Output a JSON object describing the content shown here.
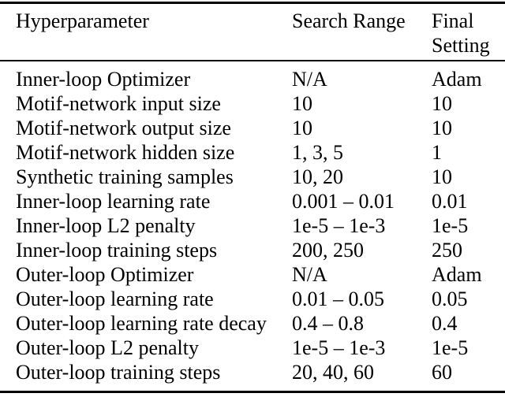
{
  "table": {
    "headers": [
      "Hyperparameter",
      "Search Range",
      "Final Setting"
    ],
    "rows": [
      [
        "Inner-loop Optimizer",
        "N/A",
        "Adam"
      ],
      [
        "Motif-network input size",
        "10",
        "10"
      ],
      [
        "Motif-network output size",
        "10",
        "10"
      ],
      [
        "Motif-network hidden size",
        "1, 3, 5",
        "1"
      ],
      [
        "Synthetic training samples",
        "10, 20",
        "10"
      ],
      [
        "Inner-loop learning rate",
        "0.001 – 0.01",
        "0.01"
      ],
      [
        "Inner-loop L2 penalty",
        "1e-5 – 1e-3",
        "1e-5"
      ],
      [
        "Inner-loop training steps",
        "200, 250",
        "250"
      ],
      [
        "Outer-loop Optimizer",
        "N/A",
        "Adam"
      ],
      [
        "Outer-loop learning rate",
        "0.01 – 0.05",
        "0.05"
      ],
      [
        "Outer-loop learning rate decay",
        "0.4 – 0.8",
        "0.4"
      ],
      [
        "Outer-loop L2 penalty",
        "1e-5 – 1e-3",
        "1e-5"
      ],
      [
        "Outer-loop training steps",
        "20, 40, 60",
        "60"
      ]
    ]
  },
  "colors": {
    "background": "#ffffff",
    "text": "#000000",
    "rule": "#000000"
  }
}
